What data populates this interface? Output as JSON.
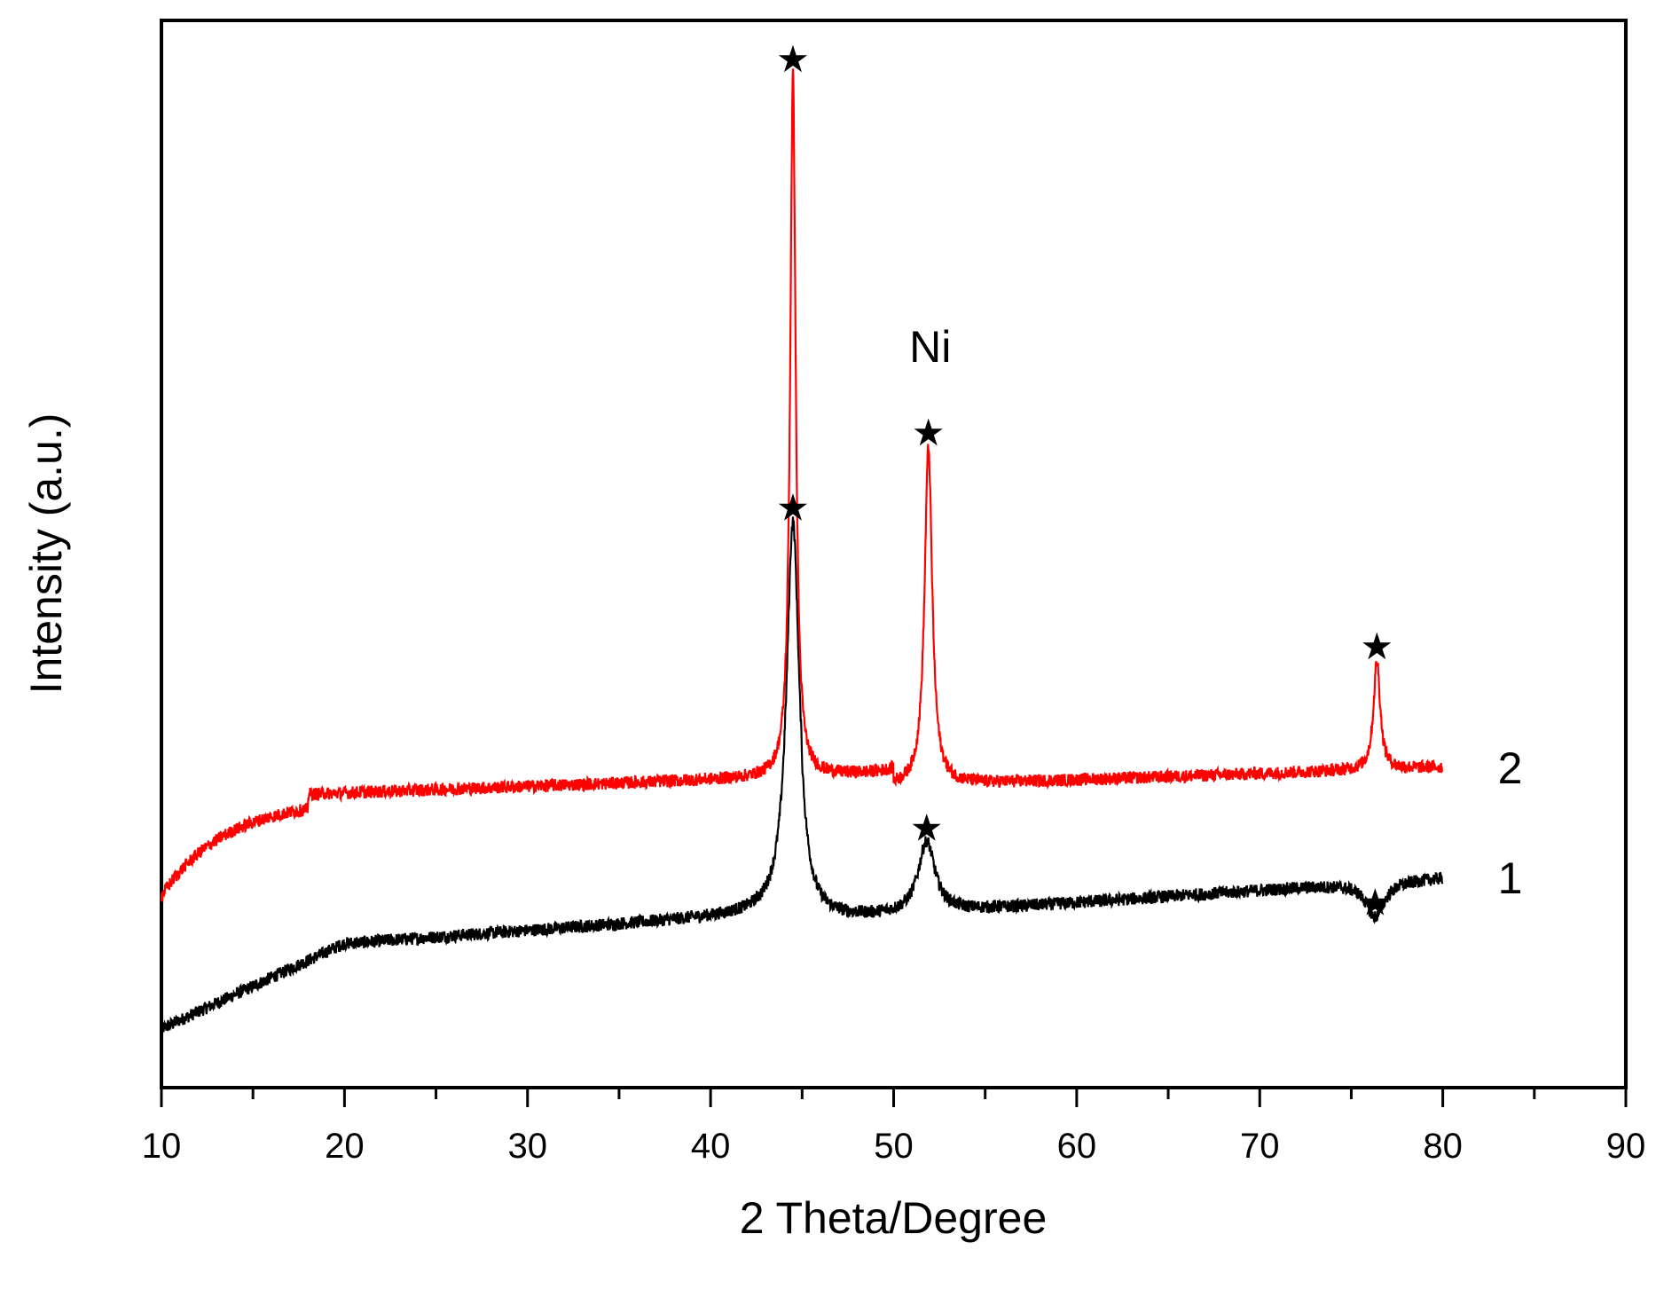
{
  "chart_data": {
    "type": "line",
    "xlabel": "2 Theta/Degree",
    "ylabel": "Intensity (a.u.)",
    "xlim": [
      10,
      90
    ],
    "ylim": [
      0,
      1
    ],
    "x_ticks": [
      10,
      20,
      30,
      40,
      50,
      60,
      70,
      80,
      90
    ],
    "x_minor_step": 5,
    "y_ticks": [],
    "grid": false,
    "legend": "none",
    "series": [
      {
        "name": "1",
        "color": "#000000",
        "peaks": [
          {
            "x": 44.5,
            "y": 0.53
          },
          {
            "x": 51.8,
            "y": 0.23
          },
          {
            "x": 76.3,
            "y": 0.16
          }
        ]
      },
      {
        "name": "2",
        "color": "#ff0000",
        "peaks": [
          {
            "x": 44.5,
            "y": 0.95
          },
          {
            "x": 51.9,
            "y": 0.6
          },
          {
            "x": 76.4,
            "y": 0.4
          }
        ]
      }
    ],
    "annotations": [
      {
        "text": "Ni",
        "x": 52,
        "y": 0.68
      }
    ],
    "marker_symbol": "★"
  }
}
